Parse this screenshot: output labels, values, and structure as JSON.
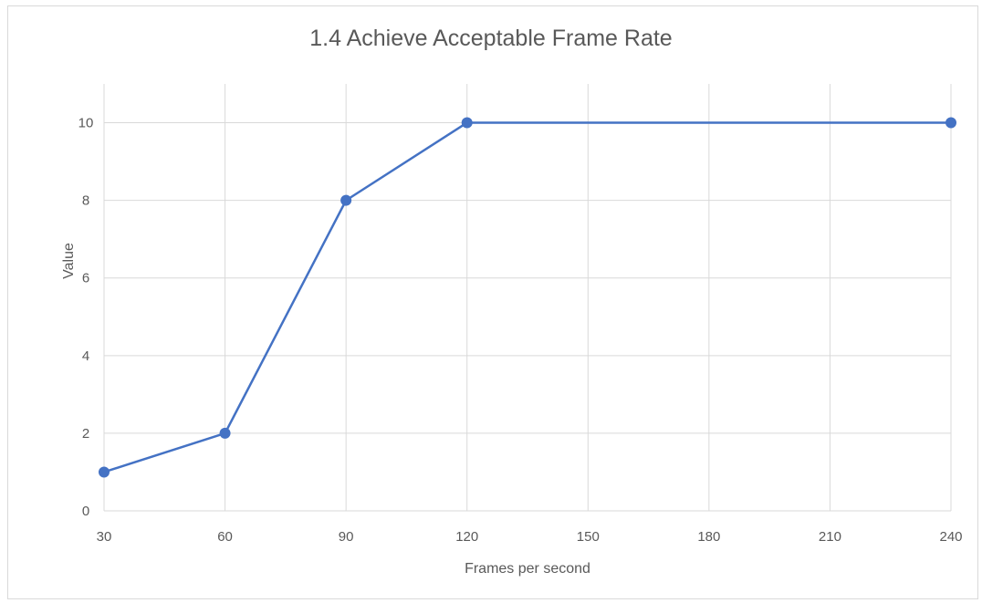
{
  "chart_data": {
    "type": "line",
    "title": "1.4 Achieve Acceptable Frame Rate",
    "xlabel": "Frames per second",
    "ylabel": "Value",
    "x_ticks": [
      30,
      60,
      90,
      120,
      150,
      180,
      210,
      240
    ],
    "y_ticks": [
      0,
      2,
      4,
      6,
      8,
      10
    ],
    "xlim": [
      30,
      240
    ],
    "ylim": [
      0,
      11
    ],
    "grid": true,
    "legend": "none",
    "series": [
      {
        "color": "#4472c4",
        "points": [
          {
            "x": 30,
            "y": 1
          },
          {
            "x": 60,
            "y": 2
          },
          {
            "x": 90,
            "y": 8
          },
          {
            "x": 120,
            "y": 10
          },
          {
            "x": 240,
            "y": 10
          }
        ]
      }
    ]
  }
}
